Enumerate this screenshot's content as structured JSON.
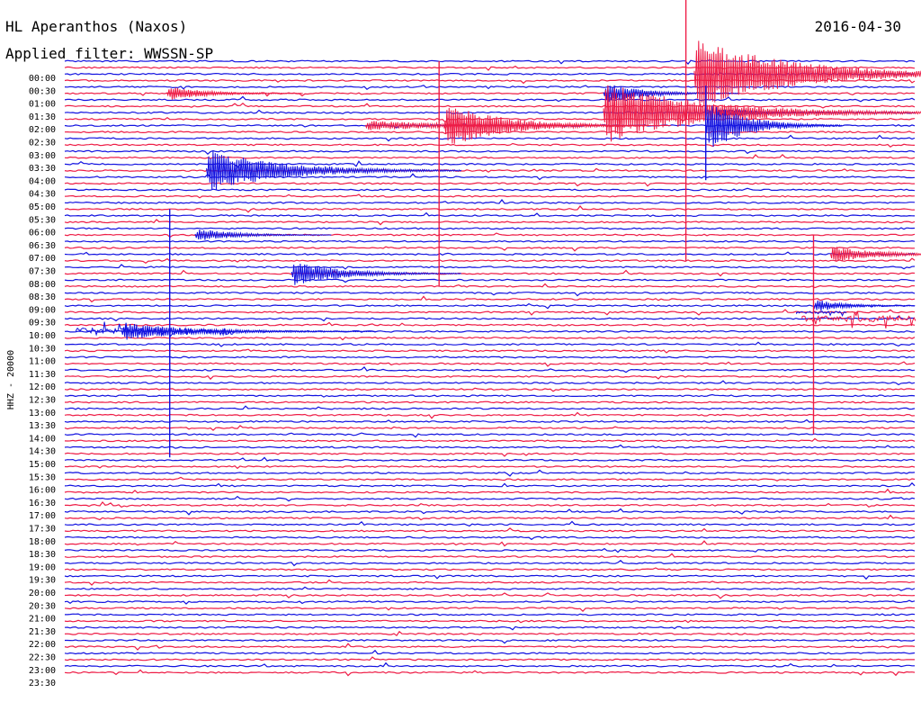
{
  "header": {
    "station": "HL Aperanthos (Naxos)",
    "date": "2016-04-30",
    "filter": "Applied filter: WWSSN-SP"
  },
  "chart_data": {
    "type": "line",
    "subtype": "helicorder",
    "ylabel": "HHZ - 20000",
    "tick_labels": [
      "00:00",
      "00:30",
      "01:00",
      "01:30",
      "02:00",
      "02:30",
      "03:00",
      "03:30",
      "04:00",
      "04:30",
      "05:00",
      "05:30",
      "06:00",
      "06:30",
      "07:00",
      "07:30",
      "08:00",
      "08:30",
      "09:00",
      "09:30",
      "10:00",
      "10:30",
      "11:00",
      "11:30",
      "12:00",
      "12:30",
      "13:00",
      "13:30",
      "14:00",
      "14:30",
      "15:00",
      "15:30",
      "16:00",
      "16:30",
      "17:00",
      "17:30",
      "18:00",
      "18:30",
      "19:00",
      "19:30",
      "20:00",
      "20:30",
      "21:00",
      "21:30",
      "22:00",
      "22:30",
      "23:00",
      "23:30"
    ],
    "colors": {
      "even_trace": "#1212e0",
      "odd_trace": "#ee1c46"
    },
    "minutes_per_trace": 15,
    "events": [
      {
        "trace": 5,
        "minute": 1.8,
        "amp": 8,
        "dur": 0.8,
        "color": "#ee1c46"
      },
      {
        "trace": 8,
        "minute": 11.5,
        "amp": 5,
        "dur": 0.7,
        "color": "#1212e0"
      },
      {
        "trace": 10,
        "minute": 5.3,
        "amp": 6,
        "dur": 1.8,
        "color": "#ee1c46"
      },
      {
        "trace": 10,
        "minute": 6.7,
        "amp": 25,
        "dur": 1.2,
        "color": "#ee1c46"
      },
      {
        "trace": 5,
        "minute": 9.5,
        "amp": 12,
        "dur": 0.8,
        "color": "#1212e0"
      },
      {
        "trace": 8,
        "minute": 9.5,
        "amp": 35,
        "dur": 2.0,
        "color": "#ee1c46"
      },
      {
        "trace": 2,
        "minute": 11.1,
        "amp": 40,
        "dur": 2.0,
        "color": "#ee1c46"
      },
      {
        "trace": 10,
        "minute": 11.3,
        "amp": 30,
        "dur": 0.8,
        "color": "#1212e0"
      },
      {
        "trace": 17,
        "minute": 2.5,
        "amp": 25,
        "dur": 1.5,
        "color": "#1212e0"
      },
      {
        "trace": 27,
        "minute": 2.3,
        "amp": 8,
        "dur": 0.8,
        "color": "#1212e0"
      },
      {
        "trace": 33,
        "minute": 4.0,
        "amp": 14,
        "dur": 1.0,
        "color": "#1212e0"
      },
      {
        "trace": 30,
        "minute": 13.5,
        "amp": 10,
        "dur": 0.9,
        "color": "#ee1c46"
      },
      {
        "trace": 38,
        "minute": 13.2,
        "amp": 8,
        "dur": 0.6,
        "color": "#1212e0"
      },
      {
        "trace": 42,
        "minute": 1.0,
        "amp": 10,
        "dur": 1.5,
        "color": "#1212e0"
      }
    ],
    "spikes": [
      {
        "trace": 0,
        "minute": 6.6,
        "up": 0,
        "down": 250,
        "color": "#ee1c46"
      },
      {
        "trace": 1,
        "minute": 10.95,
        "up": 80,
        "down": 215,
        "color": "#ee1c46"
      },
      {
        "trace": 8,
        "minute": 11.3,
        "up": 30,
        "down": 75,
        "color": "#1212e0"
      },
      {
        "trace": 28,
        "minute": 1.85,
        "up": 36,
        "down": 240,
        "color": "#1212e0"
      },
      {
        "trace": 30,
        "minute": 13.2,
        "up": 22,
        "down": 200,
        "color": "#ee1c46"
      },
      {
        "trace": 44,
        "minute": 1.85,
        "up": 0,
        "down": 30,
        "color": "#1212e0"
      }
    ],
    "noise_bursts": [
      {
        "trace": 42,
        "minute": 0.2,
        "dur": 2.8,
        "amp": 15,
        "color": "#1212e0"
      },
      {
        "trace": 40,
        "minute": 13.0,
        "dur": 2.0,
        "amp": 14,
        "color": "#ee1c46"
      },
      {
        "trace": 39,
        "minute": 12.9,
        "dur": 0.9,
        "amp": 5,
        "color": "#1212e0"
      }
    ]
  }
}
